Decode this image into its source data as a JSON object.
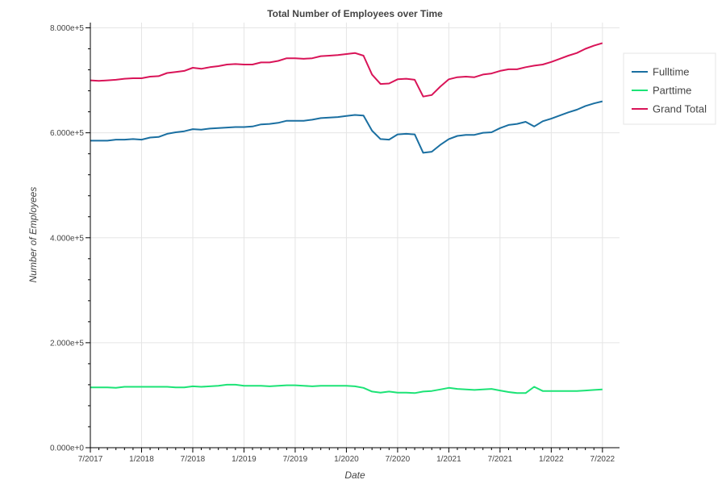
{
  "chart_data": {
    "type": "line",
    "title": "Total Number of Employees over Time",
    "xlabel": "Date",
    "ylabel": "Number of Employees",
    "x_ticks": [
      "7/2017",
      "1/2018",
      "7/2018",
      "1/2019",
      "7/2019",
      "1/2020",
      "7/2020",
      "1/2021",
      "7/2021",
      "1/2022",
      "7/2022"
    ],
    "y_ticks": [
      {
        "value": 0,
        "label": "0.000e+0"
      },
      {
        "value": 200000,
        "label": "2.000e+5"
      },
      {
        "value": 400000,
        "label": "4.000e+5"
      },
      {
        "value": 600000,
        "label": "6.000e+5"
      },
      {
        "value": 800000,
        "label": "8.000e+5"
      }
    ],
    "xlim": [
      "2017-07",
      "2022-09"
    ],
    "ylim": [
      0,
      810000
    ],
    "grid": true,
    "legend_position": "top-right",
    "x": [
      "2017-07",
      "2017-08",
      "2017-09",
      "2017-10",
      "2017-11",
      "2017-12",
      "2018-01",
      "2018-02",
      "2018-03",
      "2018-04",
      "2018-05",
      "2018-06",
      "2018-07",
      "2018-08",
      "2018-09",
      "2018-10",
      "2018-11",
      "2018-12",
      "2019-01",
      "2019-02",
      "2019-03",
      "2019-04",
      "2019-05",
      "2019-06",
      "2019-07",
      "2019-08",
      "2019-09",
      "2019-10",
      "2019-11",
      "2019-12",
      "2020-01",
      "2020-02",
      "2020-03",
      "2020-04",
      "2020-05",
      "2020-06",
      "2020-07",
      "2020-08",
      "2020-09",
      "2020-10",
      "2020-11",
      "2020-12",
      "2021-01",
      "2021-02",
      "2021-03",
      "2021-04",
      "2021-05",
      "2021-06",
      "2021-07",
      "2021-08",
      "2021-09",
      "2021-10",
      "2021-11",
      "2021-12",
      "2022-01",
      "2022-02",
      "2022-03",
      "2022-04",
      "2022-05",
      "2022-06",
      "2022-07"
    ],
    "series": [
      {
        "name": "Fulltime",
        "color": "#1a6fa1",
        "values": [
          585000,
          585000,
          585000,
          587000,
          587000,
          588000,
          587000,
          591000,
          592000,
          598000,
          601000,
          603000,
          607000,
          606000,
          608000,
          609000,
          610000,
          611000,
          611000,
          612000,
          616000,
          617000,
          619000,
          623000,
          623000,
          623000,
          625000,
          628000,
          629000,
          630000,
          632000,
          634000,
          633000,
          604000,
          588000,
          587000,
          597000,
          598000,
          597000,
          562000,
          564000,
          577000,
          588000,
          594000,
          596000,
          596000,
          600000,
          601000,
          609000,
          615000,
          617000,
          621000,
          612000,
          622000,
          627000,
          633000,
          639000,
          644000,
          651000,
          656000,
          660000
        ]
      },
      {
        "name": "Parttime",
        "color": "#1ce376",
        "values": [
          115000,
          115000,
          115000,
          114000,
          116000,
          116000,
          116000,
          116000,
          116000,
          116000,
          115000,
          115000,
          117000,
          116000,
          117000,
          118000,
          120000,
          120000,
          118000,
          118000,
          118000,
          117000,
          118000,
          119000,
          119000,
          118000,
          117000,
          118000,
          118000,
          118000,
          118000,
          117000,
          114000,
          107000,
          105000,
          107000,
          105000,
          105000,
          104000,
          107000,
          108000,
          111000,
          114000,
          112000,
          111000,
          110000,
          111000,
          112000,
          109000,
          106000,
          104000,
          104000,
          116000,
          108000,
          108000,
          108000,
          108000,
          108000,
          109000,
          110000,
          111000
        ]
      },
      {
        "name": "Grand Total",
        "color": "#d91458",
        "values": [
          700000,
          699000,
          700000,
          701000,
          703000,
          704000,
          704000,
          707000,
          708000,
          714000,
          716000,
          718000,
          724000,
          722000,
          725000,
          727000,
          730000,
          731000,
          730000,
          730000,
          734000,
          734000,
          737000,
          742000,
          742000,
          741000,
          742000,
          746000,
          747000,
          748000,
          750000,
          752000,
          747000,
          711000,
          693000,
          694000,
          702000,
          703000,
          701000,
          669000,
          672000,
          688000,
          702000,
          706000,
          707000,
          706000,
          711000,
          713000,
          718000,
          721000,
          721000,
          725000,
          728000,
          730000,
          735000,
          741000,
          747000,
          752000,
          760000,
          766000,
          771000
        ]
      }
    ]
  }
}
